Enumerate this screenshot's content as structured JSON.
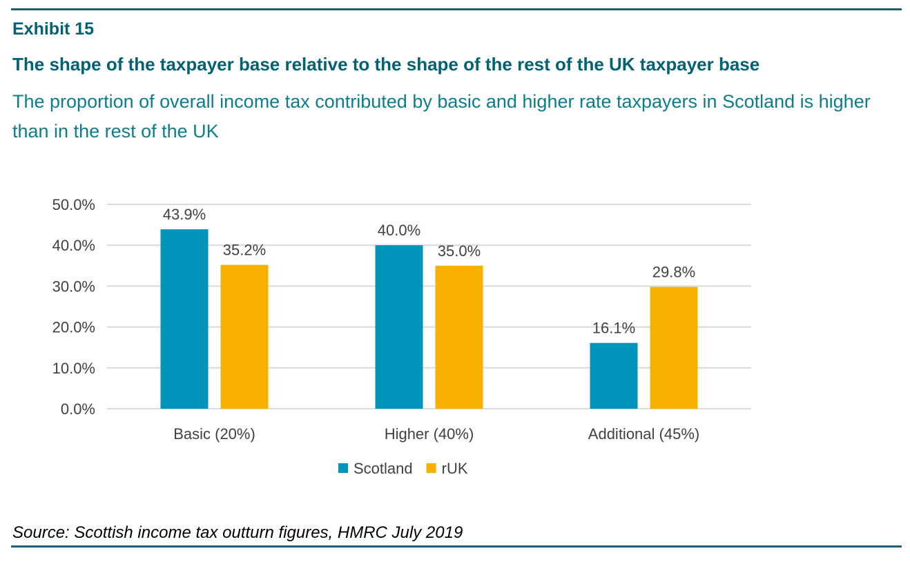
{
  "header": {
    "exhibit": "Exhibit 15",
    "title": "The shape of the taxpayer base relative to the shape of the rest of the UK taxpayer base",
    "subtitle": "The proportion of overall income tax contributed by basic and higher rate taxpayers in Scotland is higher than in the rest of the UK"
  },
  "chart_data": {
    "type": "bar",
    "categories": [
      "Basic (20%)",
      "Higher (40%)",
      "Additional (45%)"
    ],
    "series": [
      {
        "name": "Scotland",
        "values": [
          43.9,
          40.0,
          16.1
        ],
        "labels": [
          "43.9%",
          "40.0%",
          "16.1%"
        ],
        "color": "#0094bb"
      },
      {
        "name": "rUK",
        "values": [
          35.2,
          35.0,
          29.8
        ],
        "labels": [
          "35.2%",
          "35.0%",
          "29.8%"
        ],
        "color": "#f7b000"
      }
    ],
    "ylim": [
      0,
      50
    ],
    "yticks": [
      0,
      10,
      20,
      30,
      40,
      50
    ],
    "ytick_labels": [
      "0.0%",
      "10.0%",
      "20.0%",
      "30.0%",
      "40.0%",
      "50.0%"
    ],
    "grid": true,
    "legend": "bottom-center",
    "colors": {
      "grid": "#d9d9d9",
      "text": "#404040"
    }
  },
  "footer": {
    "source": "Source: Scottish income tax outturn figures, HMRC July 2019"
  }
}
